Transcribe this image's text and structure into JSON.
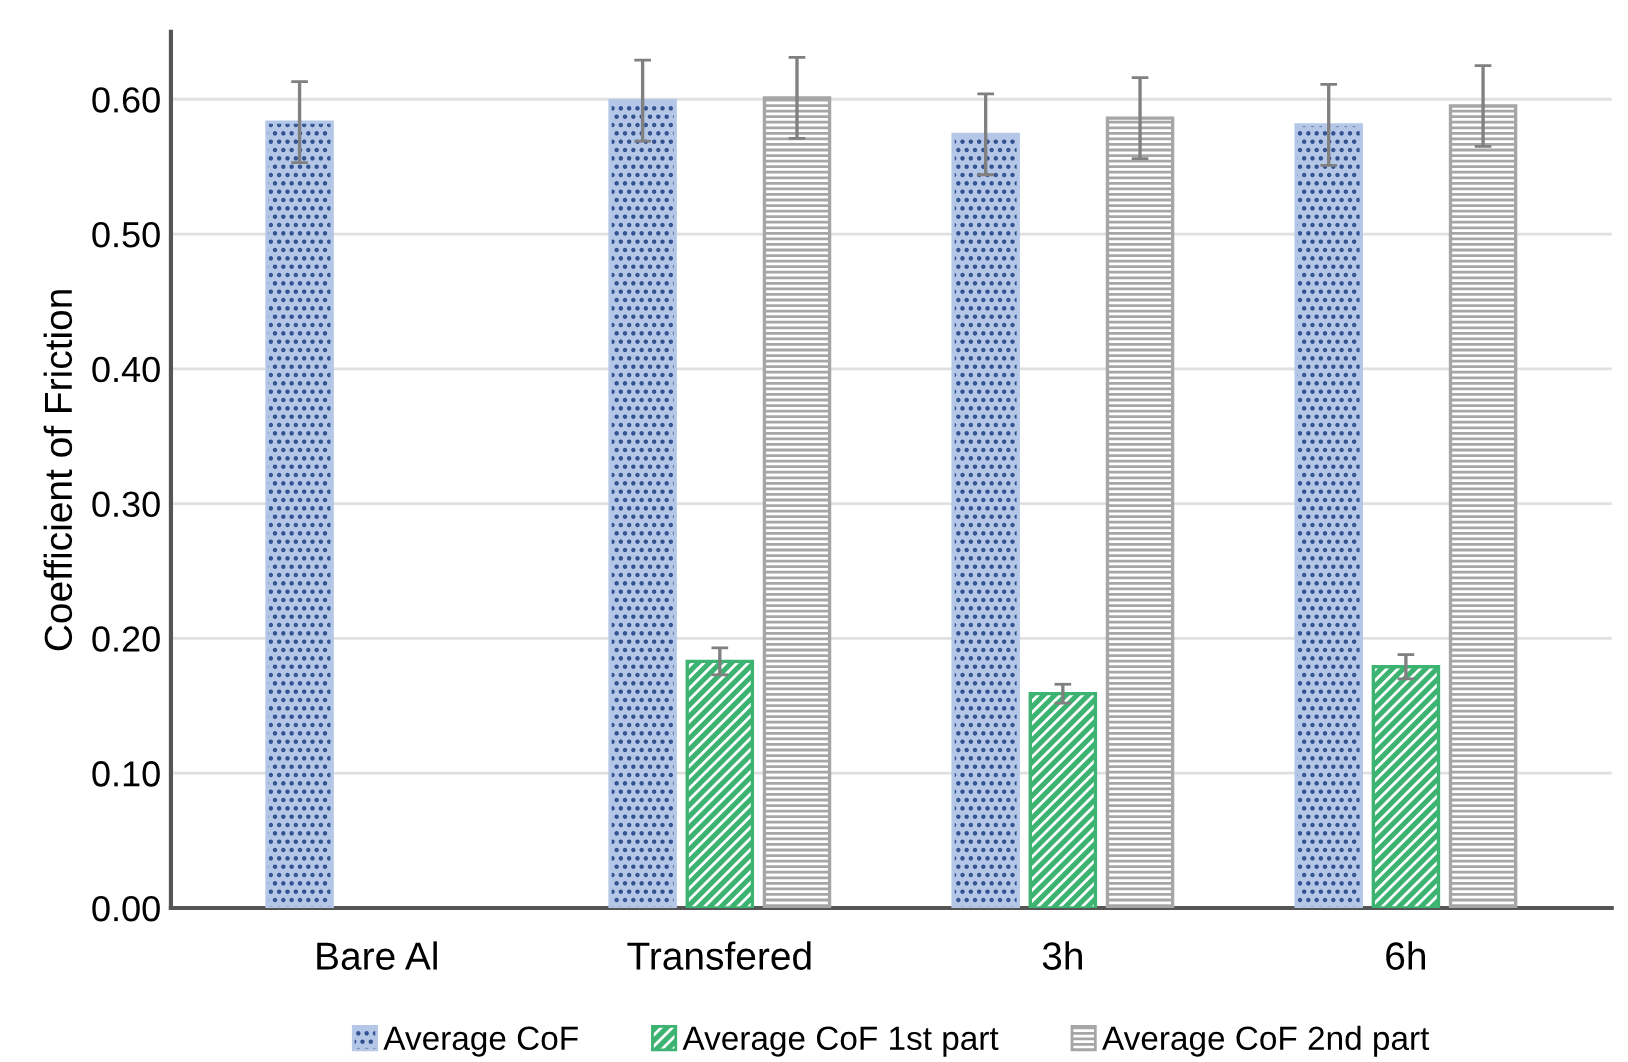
{
  "chart_data": {
    "type": "bar",
    "ylabel": "Coefficient of Friction",
    "categories": [
      "Bare Al",
      "Transfered",
      "3h",
      "6h"
    ],
    "series": [
      {
        "name": "Average CoF",
        "color": "#b4c7e7",
        "values": [
          0.583,
          0.599,
          0.574,
          0.581
        ],
        "errors": [
          0.03,
          0.03,
          0.03,
          0.03
        ]
      },
      {
        "name": "Average CoF 1st part",
        "color": "#3cb371",
        "values": [
          null,
          0.183,
          0.159,
          0.179
        ],
        "errors": [
          null,
          0.01,
          0.007,
          0.009
        ]
      },
      {
        "name": "Average CoF 2nd part",
        "color": "#a6a6a6",
        "values": [
          null,
          0.601,
          0.586,
          0.595
        ],
        "errors": [
          null,
          0.03,
          0.03,
          0.03
        ]
      }
    ],
    "ylim": [
      0,
      0.65
    ],
    "yticks": [
      {
        "value": 0,
        "label": "0.00"
      },
      {
        "value": 0.1,
        "label": "0.10"
      },
      {
        "value": 0.2,
        "label": "0.20"
      },
      {
        "value": 0.3,
        "label": "0.30"
      },
      {
        "value": 0.4,
        "label": "0.40"
      },
      {
        "value": 0.5,
        "label": "0.50"
      },
      {
        "value": 0.6,
        "label": "0.60"
      }
    ],
    "grid": "y",
    "legend": "bottom"
  }
}
